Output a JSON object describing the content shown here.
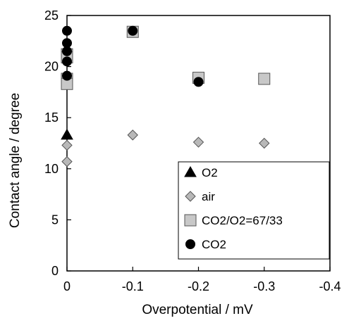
{
  "chart_data": {
    "type": "scatter",
    "title": "",
    "xlabel": "Overpotential / mV",
    "ylabel": "Contact angle / degree",
    "xlim": [
      0,
      -0.4
    ],
    "ylim": [
      0,
      25
    ],
    "xticks": [
      0,
      -0.1,
      -0.2,
      -0.3,
      -0.4
    ],
    "xtick_labels": [
      "0",
      "-0.1",
      "-0.2",
      "-0.3",
      "-0.4"
    ],
    "yticks": [
      0,
      5,
      10,
      15,
      20,
      25
    ],
    "ytick_labels": [
      "0",
      "5",
      "10",
      "15",
      "20",
      "25"
    ],
    "grid": false,
    "legend_position": "bottom-right",
    "series": [
      {
        "name": "O2",
        "marker": "triangle",
        "color": "#000000",
        "points": [
          [
            0,
            13.3
          ]
        ]
      },
      {
        "name": "air",
        "marker": "diamond",
        "color": "#b8b8b8",
        "points": [
          [
            0,
            12.3
          ],
          [
            0,
            10.7
          ],
          [
            -0.1,
            13.3
          ],
          [
            -0.2,
            12.6
          ],
          [
            -0.3,
            12.5
          ]
        ]
      },
      {
        "name": "CO2/O2=67/33",
        "marker": "square",
        "color": "#c8c8c8",
        "points": [
          [
            0,
            21.2
          ],
          [
            0,
            20.9
          ],
          [
            0,
            18.8
          ],
          [
            0,
            18.3
          ],
          [
            -0.1,
            23.4
          ],
          [
            -0.2,
            18.9
          ],
          [
            -0.3,
            18.8
          ]
        ]
      },
      {
        "name": "CO2",
        "marker": "circle",
        "color": "#000000",
        "points": [
          [
            0,
            23.5
          ],
          [
            0,
            22.3
          ],
          [
            0,
            21.5
          ],
          [
            0,
            20.5
          ],
          [
            0,
            19.1
          ],
          [
            -0.1,
            23.5
          ],
          [
            -0.2,
            18.5
          ]
        ]
      }
    ]
  }
}
